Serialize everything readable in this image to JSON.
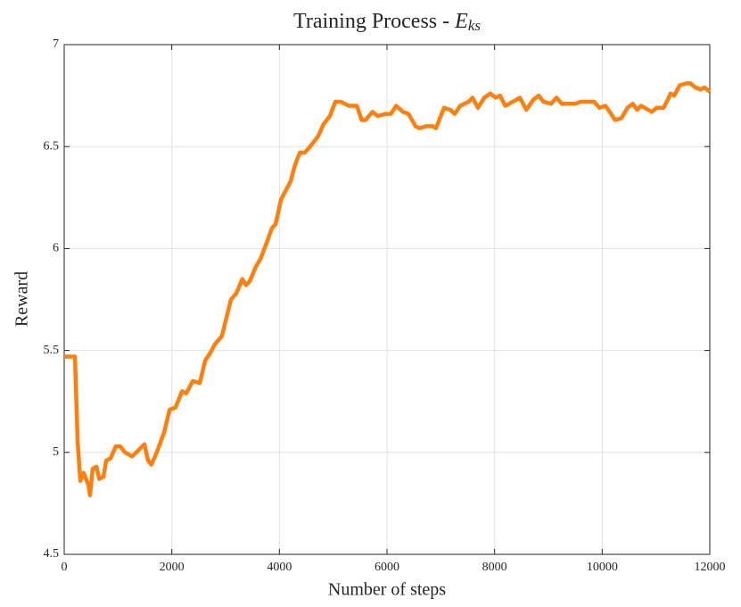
{
  "chart_data": {
    "type": "line",
    "title": "Training Process -",
    "title_symbol": "E",
    "title_subscript": "ks",
    "xlabel": "Number of steps",
    "ylabel": "Reward",
    "xlim": [
      0,
      12000
    ],
    "ylim": [
      4.5,
      7
    ],
    "xticks": [
      0,
      2000,
      4000,
      6000,
      8000,
      10000,
      12000
    ],
    "yticks": [
      4.5,
      5,
      5.5,
      6,
      6.5,
      7
    ],
    "grid": true,
    "x": [
      0,
      100,
      200,
      250,
      300,
      360,
      450,
      480,
      530,
      600,
      650,
      730,
      780,
      860,
      960,
      1040,
      1130,
      1260,
      1340,
      1490,
      1560,
      1620,
      1720,
      1860,
      1960,
      2070,
      2190,
      2270,
      2390,
      2520,
      2620,
      2720,
      2800,
      2930,
      3100,
      3200,
      3310,
      3380,
      3450,
      3560,
      3650,
      3780,
      3860,
      3930,
      4030,
      4110,
      4210,
      4290,
      4380,
      4470,
      4570,
      4720,
      4820,
      4940,
      5040,
      5140,
      5290,
      5440,
      5530,
      5600,
      5730,
      5830,
      5970,
      6070,
      6170,
      6300,
      6400,
      6530,
      6600,
      6730,
      6850,
      6910,
      7060,
      7180,
      7260,
      7360,
      7520,
      7590,
      7690,
      7810,
      7920,
      8020,
      8100,
      8200,
      8340,
      8470,
      8590,
      8720,
      8820,
      8910,
      9050,
      9150,
      9250,
      9380,
      9500,
      9600,
      9730,
      9850,
      9950,
      10060,
      10140,
      10240,
      10360,
      10470,
      10570,
      10650,
      10720,
      10860,
      10920,
      11010,
      11140,
      11220,
      11270,
      11340,
      11440,
      11570,
      11640,
      11730,
      11830,
      11900,
      12000
    ],
    "series": [
      {
        "name": "Reward",
        "color": "#ff7f0e",
        "values": [
          5.47,
          5.47,
          5.47,
          5.05,
          4.86,
          4.9,
          4.84,
          4.79,
          4.92,
          4.93,
          4.87,
          4.88,
          4.96,
          4.97,
          5.03,
          5.03,
          5.0,
          4.98,
          5.0,
          5.04,
          4.96,
          4.94,
          5.0,
          5.1,
          5.21,
          5.22,
          5.3,
          5.29,
          5.35,
          5.34,
          5.45,
          5.49,
          5.53,
          5.57,
          5.75,
          5.78,
          5.85,
          5.82,
          5.84,
          5.91,
          5.95,
          6.04,
          6.1,
          6.12,
          6.24,
          6.28,
          6.33,
          6.41,
          6.47,
          6.47,
          6.5,
          6.55,
          6.61,
          6.65,
          6.72,
          6.72,
          6.7,
          6.7,
          6.63,
          6.63,
          6.67,
          6.65,
          6.66,
          6.66,
          6.7,
          6.67,
          6.66,
          6.6,
          6.59,
          6.6,
          6.6,
          6.59,
          6.69,
          6.68,
          6.66,
          6.7,
          6.72,
          6.74,
          6.69,
          6.74,
          6.76,
          6.74,
          6.75,
          6.7,
          6.72,
          6.74,
          6.68,
          6.73,
          6.75,
          6.72,
          6.71,
          6.74,
          6.71,
          6.71,
          6.71,
          6.72,
          6.72,
          6.72,
          6.69,
          6.7,
          6.67,
          6.63,
          6.64,
          6.69,
          6.71,
          6.68,
          6.7,
          6.68,
          6.67,
          6.69,
          6.69,
          6.73,
          6.76,
          6.75,
          6.8,
          6.81,
          6.81,
          6.79,
          6.78,
          6.79,
          6.77
        ]
      }
    ]
  }
}
